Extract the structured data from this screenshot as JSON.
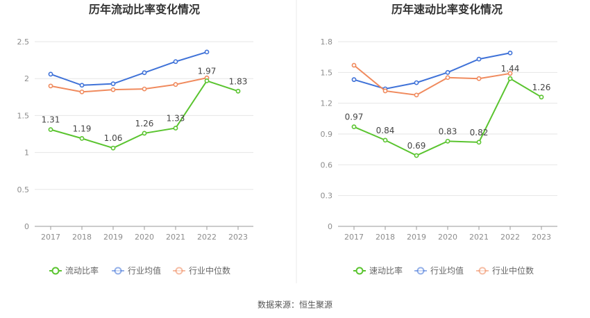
{
  "source_label": "数据来源：恒生聚源",
  "colors": {
    "company": "#5ac42f",
    "industry_avg": "#3f72d8",
    "industry_median": "#f08a5d",
    "grid": "#e6e6e6",
    "axis": "#999999",
    "divider": "#e8e8e8"
  },
  "chart_data": [
    {
      "type": "line",
      "title": "历年流动比率变化情况",
      "x": [
        "2017",
        "2018",
        "2019",
        "2020",
        "2021",
        "2022",
        "2023"
      ],
      "ylim": [
        0,
        2.5
      ],
      "yticks": [
        "0",
        "0.5",
        "1",
        "1.5",
        "2",
        "2.5"
      ],
      "grid": true,
      "legend_position": "bottom",
      "series": [
        {
          "name": "流动比率",
          "values": [
            1.31,
            1.19,
            1.06,
            1.26,
            1.33,
            1.97,
            1.83
          ],
          "labels": [
            "1.31",
            "1.19",
            "1.06",
            "1.26",
            "1.33",
            "1.97",
            "1.83"
          ]
        },
        {
          "name": "行业均值",
          "values": [
            2.06,
            1.91,
            1.93,
            2.08,
            2.23,
            2.36,
            null
          ]
        },
        {
          "name": "行业中位数",
          "values": [
            1.9,
            1.82,
            1.85,
            1.86,
            1.92,
            2.01,
            null
          ]
        }
      ]
    },
    {
      "type": "line",
      "title": "历年速动比率变化情况",
      "x": [
        "2017",
        "2018",
        "2019",
        "2020",
        "2021",
        "2022",
        "2023"
      ],
      "ylim": [
        0,
        1.8
      ],
      "yticks": [
        "0",
        "0.3",
        "0.6",
        "0.9",
        "1.2",
        "1.5",
        "1.8"
      ],
      "grid": true,
      "legend_position": "bottom",
      "series": [
        {
          "name": "速动比率",
          "values": [
            0.97,
            0.84,
            0.69,
            0.83,
            0.82,
            1.44,
            1.26
          ],
          "labels": [
            "0.97",
            "0.84",
            "0.69",
            "0.83",
            "0.82",
            "1.44",
            "1.26"
          ]
        },
        {
          "name": "行业均值",
          "values": [
            1.43,
            1.34,
            1.4,
            1.5,
            1.63,
            1.69,
            null
          ]
        },
        {
          "name": "行业中位数",
          "values": [
            1.57,
            1.32,
            1.28,
            1.45,
            1.44,
            1.49,
            null
          ]
        }
      ]
    }
  ]
}
